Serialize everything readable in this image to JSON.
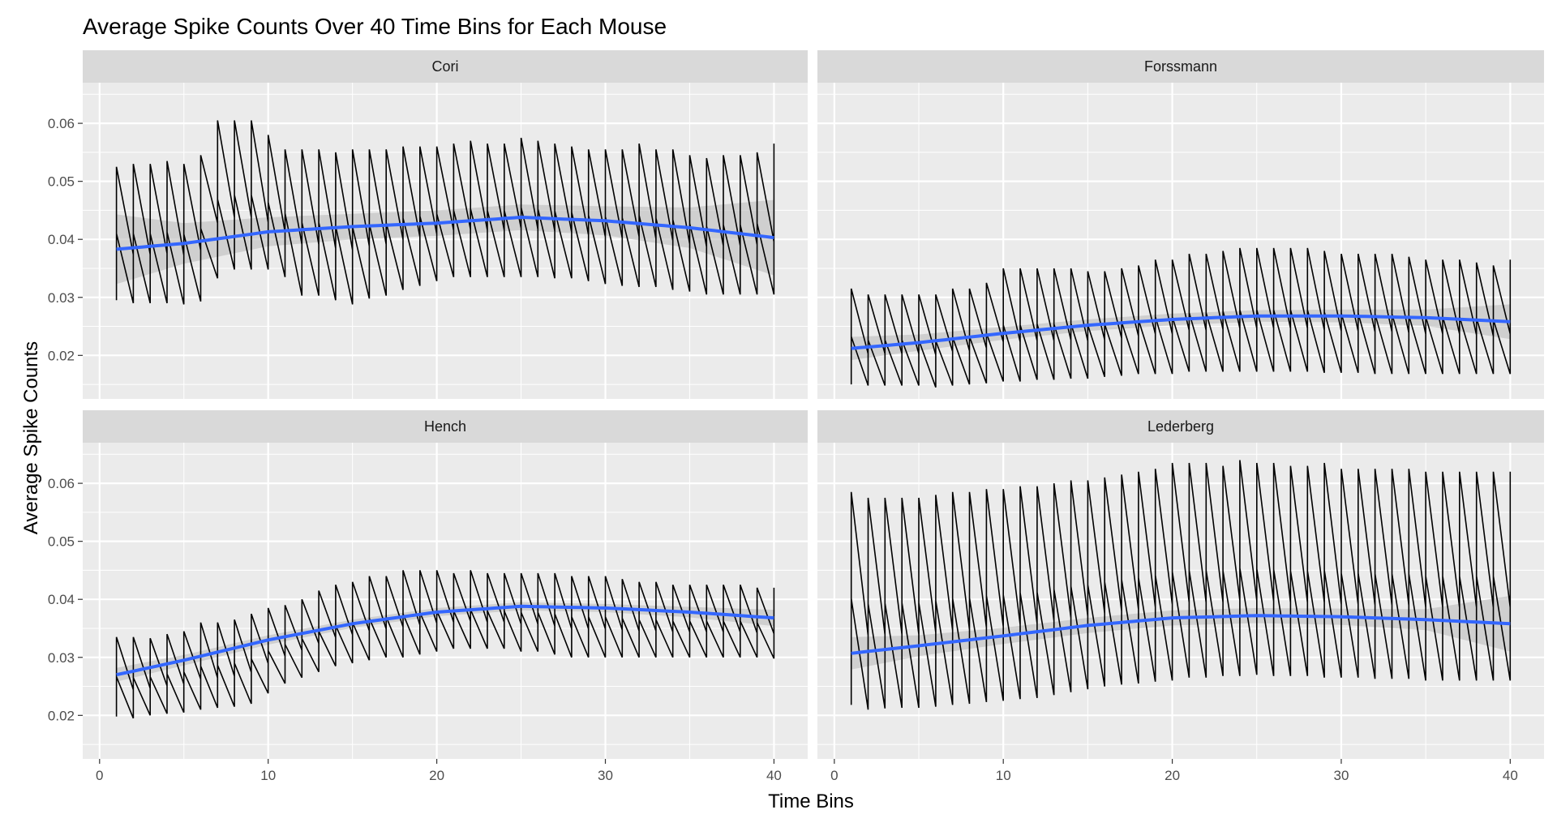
{
  "chart_data": {
    "type": "line",
    "title": "Average Spike Counts Over 40 Time Bins for Each Mouse",
    "xlabel": "Time Bins",
    "ylabel": "Average Spike Counts",
    "xlim": [
      -1,
      42
    ],
    "ylim": [
      0.0125,
      0.067
    ],
    "x_ticks": [
      0,
      10,
      20,
      30,
      40
    ],
    "y_ticks": [
      0.02,
      0.03,
      0.04,
      0.05,
      0.06
    ],
    "y_tick_labels": [
      "0.02",
      "0.03",
      "0.04",
      "0.05",
      "0.06"
    ],
    "grid": true,
    "legend": "none",
    "facet_layout": "2x2",
    "colors": {
      "panel_background": "#ebebeb",
      "grid": "#ffffff",
      "strip_background": "#d9d9d9",
      "raw_line": "#000000",
      "smooth_line": "#3366ff",
      "ribbon": "#bdbdbd"
    },
    "panels": [
      {
        "name": "Cori",
        "x": [
          1,
          40
        ],
        "sawtooth_top": [
          0.0525,
          0.053,
          0.053,
          0.0535,
          0.053,
          0.0545,
          0.0605,
          0.0605,
          0.0605,
          0.058,
          0.0555,
          0.0555,
          0.0555,
          0.055,
          0.0555,
          0.0555,
          0.0555,
          0.056,
          0.056,
          0.056,
          0.0565,
          0.057,
          0.0565,
          0.0565,
          0.0575,
          0.057,
          0.0565,
          0.056,
          0.0555,
          0.0555,
          0.0555,
          0.0565,
          0.0555,
          0.0555,
          0.0545,
          0.054,
          0.0545,
          0.0545,
          0.055,
          0.0565
        ],
        "sawtooth_bottom": [
          0.0295,
          0.029,
          0.029,
          0.029,
          0.0288,
          0.0293,
          0.0333,
          0.0348,
          0.0348,
          0.0348,
          0.0335,
          0.0303,
          0.0303,
          0.0295,
          0.0288,
          0.0298,
          0.0303,
          0.0313,
          0.032,
          0.0328,
          0.0335,
          0.0335,
          0.0335,
          0.0335,
          0.0335,
          0.0335,
          0.0333,
          0.0333,
          0.0328,
          0.0323,
          0.032,
          0.0318,
          0.0318,
          0.0313,
          0.031,
          0.0305,
          0.0305,
          0.0305,
          0.0305,
          0.0305
        ],
        "smooth_x": [
          1,
          5,
          10,
          15,
          20,
          25,
          30,
          35,
          40
        ],
        "smooth_y": [
          0.0383,
          0.0393,
          0.0413,
          0.0422,
          0.0428,
          0.0438,
          0.0432,
          0.042,
          0.0403
        ],
        "ribbon_halfwidth": [
          0.006,
          0.0035,
          0.0025,
          0.0022,
          0.0022,
          0.0022,
          0.0025,
          0.0035,
          0.0065
        ]
      },
      {
        "name": "Forssmann",
        "x": [
          1,
          40
        ],
        "sawtooth_top": [
          0.0315,
          0.0305,
          0.0305,
          0.0305,
          0.0305,
          0.0305,
          0.0315,
          0.0315,
          0.0325,
          0.035,
          0.035,
          0.035,
          0.035,
          0.035,
          0.0345,
          0.0345,
          0.035,
          0.0355,
          0.0365,
          0.0365,
          0.0375,
          0.0375,
          0.038,
          0.0385,
          0.0385,
          0.0385,
          0.0385,
          0.0385,
          0.038,
          0.0375,
          0.0375,
          0.0375,
          0.0375,
          0.037,
          0.0365,
          0.0365,
          0.0365,
          0.036,
          0.0355,
          0.0365
        ],
        "sawtooth_bottom": [
          0.015,
          0.0148,
          0.0148,
          0.0148,
          0.0148,
          0.0145,
          0.0148,
          0.015,
          0.0152,
          0.0155,
          0.0155,
          0.0158,
          0.0158,
          0.016,
          0.016,
          0.0163,
          0.0165,
          0.0168,
          0.0168,
          0.0168,
          0.0172,
          0.0172,
          0.0172,
          0.0172,
          0.0172,
          0.0172,
          0.0172,
          0.0172,
          0.017,
          0.017,
          0.017,
          0.0168,
          0.0168,
          0.0168,
          0.0168,
          0.0168,
          0.0168,
          0.0168,
          0.0168,
          0.0168
        ],
        "smooth_x": [
          1,
          5,
          10,
          15,
          20,
          25,
          30,
          35,
          40
        ],
        "smooth_y": [
          0.0212,
          0.0222,
          0.0238,
          0.0252,
          0.0262,
          0.0268,
          0.0268,
          0.0265,
          0.0258
        ],
        "ribbon_halfwidth": [
          0.002,
          0.0014,
          0.0011,
          0.001,
          0.001,
          0.001,
          0.0011,
          0.0014,
          0.003
        ]
      },
      {
        "name": "Hench",
        "x": [
          1,
          40
        ],
        "sawtooth_top": [
          0.0335,
          0.0335,
          0.0333,
          0.034,
          0.0345,
          0.036,
          0.036,
          0.0365,
          0.0375,
          0.0385,
          0.039,
          0.04,
          0.0415,
          0.0425,
          0.043,
          0.044,
          0.044,
          0.045,
          0.045,
          0.045,
          0.0445,
          0.045,
          0.0445,
          0.0445,
          0.0445,
          0.0445,
          0.0445,
          0.044,
          0.044,
          0.044,
          0.0435,
          0.043,
          0.043,
          0.0425,
          0.0425,
          0.0425,
          0.0425,
          0.0425,
          0.042,
          0.042
        ],
        "sawtooth_bottom": [
          0.0198,
          0.0195,
          0.02,
          0.0203,
          0.0205,
          0.021,
          0.0213,
          0.0215,
          0.022,
          0.0238,
          0.0255,
          0.0265,
          0.0275,
          0.0285,
          0.029,
          0.0295,
          0.03,
          0.03,
          0.0305,
          0.031,
          0.0315,
          0.0315,
          0.0315,
          0.0315,
          0.031,
          0.031,
          0.0305,
          0.03,
          0.03,
          0.03,
          0.03,
          0.03,
          0.03,
          0.03,
          0.03,
          0.03,
          0.03,
          0.03,
          0.03,
          0.0298
        ],
        "smooth_x": [
          1,
          5,
          10,
          15,
          20,
          25,
          30,
          35,
          40
        ],
        "smooth_y": [
          0.027,
          0.0295,
          0.033,
          0.0358,
          0.0378,
          0.0388,
          0.0385,
          0.0378,
          0.0368
        ],
        "ribbon_halfwidth": [
          0.0012,
          0.0009,
          0.0008,
          0.0007,
          0.0007,
          0.0007,
          0.0007,
          0.0009,
          0.0014
        ]
      },
      {
        "name": "Lederberg",
        "x": [
          1,
          40
        ],
        "sawtooth_top": [
          0.0585,
          0.0575,
          0.0575,
          0.0575,
          0.0575,
          0.058,
          0.0585,
          0.0585,
          0.059,
          0.059,
          0.0595,
          0.0595,
          0.06,
          0.0605,
          0.0605,
          0.061,
          0.0615,
          0.062,
          0.0625,
          0.0635,
          0.0635,
          0.0635,
          0.063,
          0.064,
          0.0635,
          0.0635,
          0.063,
          0.063,
          0.0635,
          0.0625,
          0.0625,
          0.0625,
          0.0625,
          0.0625,
          0.062,
          0.062,
          0.062,
          0.062,
          0.062,
          0.062
        ],
        "sawtooth_bottom": [
          0.0218,
          0.021,
          0.0212,
          0.0213,
          0.0213,
          0.0215,
          0.0218,
          0.022,
          0.0223,
          0.0225,
          0.0228,
          0.023,
          0.0235,
          0.024,
          0.0245,
          0.025,
          0.0253,
          0.0255,
          0.0258,
          0.026,
          0.0265,
          0.0265,
          0.0268,
          0.0268,
          0.027,
          0.0268,
          0.0268,
          0.0268,
          0.0265,
          0.0265,
          0.0265,
          0.0263,
          0.0263,
          0.0263,
          0.026,
          0.026,
          0.026,
          0.026,
          0.026,
          0.026
        ],
        "smooth_x": [
          1,
          5,
          10,
          15,
          20,
          25,
          30,
          35,
          40
        ],
        "smooth_y": [
          0.0307,
          0.032,
          0.0337,
          0.0355,
          0.0368,
          0.0372,
          0.037,
          0.0365,
          0.0358
        ],
        "ribbon_halfwidth": [
          0.0028,
          0.0018,
          0.0014,
          0.0013,
          0.0013,
          0.0013,
          0.0014,
          0.0018,
          0.0048
        ]
      }
    ]
  }
}
